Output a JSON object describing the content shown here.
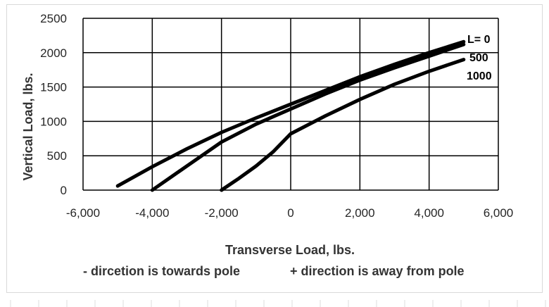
{
  "chart_data": {
    "type": "line",
    "title": "",
    "xlabel": "Transverse Load, lbs.",
    "ylabel": "Vertical Load, lbs.",
    "notes": [
      "- dircetion is towards pole",
      "+ direction is away from pole"
    ],
    "xlim": [
      -6000,
      6000
    ],
    "ylim": [
      0,
      2500
    ],
    "xticks": [
      -6000,
      -4000,
      -2000,
      0,
      2000,
      4000,
      6000
    ],
    "xtick_labels": [
      "-6,000",
      "-4,000",
      "-2,000",
      "0",
      "2,000",
      "4,000",
      "6,000"
    ],
    "yticks": [
      0,
      500,
      1000,
      1500,
      2000,
      2500
    ],
    "ytick_labels": [
      "0",
      "500",
      "1000",
      "1500",
      "2000",
      "2500"
    ],
    "grid": true,
    "series": [
      {
        "name": "L= 0",
        "x": [
          -5000,
          -4000,
          -3000,
          -2000,
          -1000,
          0,
          1000,
          2000,
          3000,
          4000,
          5000
        ],
        "y": [
          60,
          340,
          600,
          840,
          1050,
          1250,
          1450,
          1650,
          1830,
          2000,
          2160
        ]
      },
      {
        "name": "500",
        "x": [
          -4000,
          -3000,
          -2000,
          -1000,
          0,
          1000,
          2000,
          3000,
          4000,
          5000
        ],
        "y": [
          0,
          350,
          700,
          960,
          1180,
          1400,
          1600,
          1780,
          1950,
          2120
        ]
      },
      {
        "name": "1000",
        "x": [
          -2000,
          -1500,
          -1000,
          -500,
          0,
          1000,
          2000,
          3000,
          4000,
          5000
        ],
        "y": [
          0,
          170,
          350,
          560,
          820,
          1080,
          1320,
          1540,
          1730,
          1900
        ]
      }
    ]
  }
}
